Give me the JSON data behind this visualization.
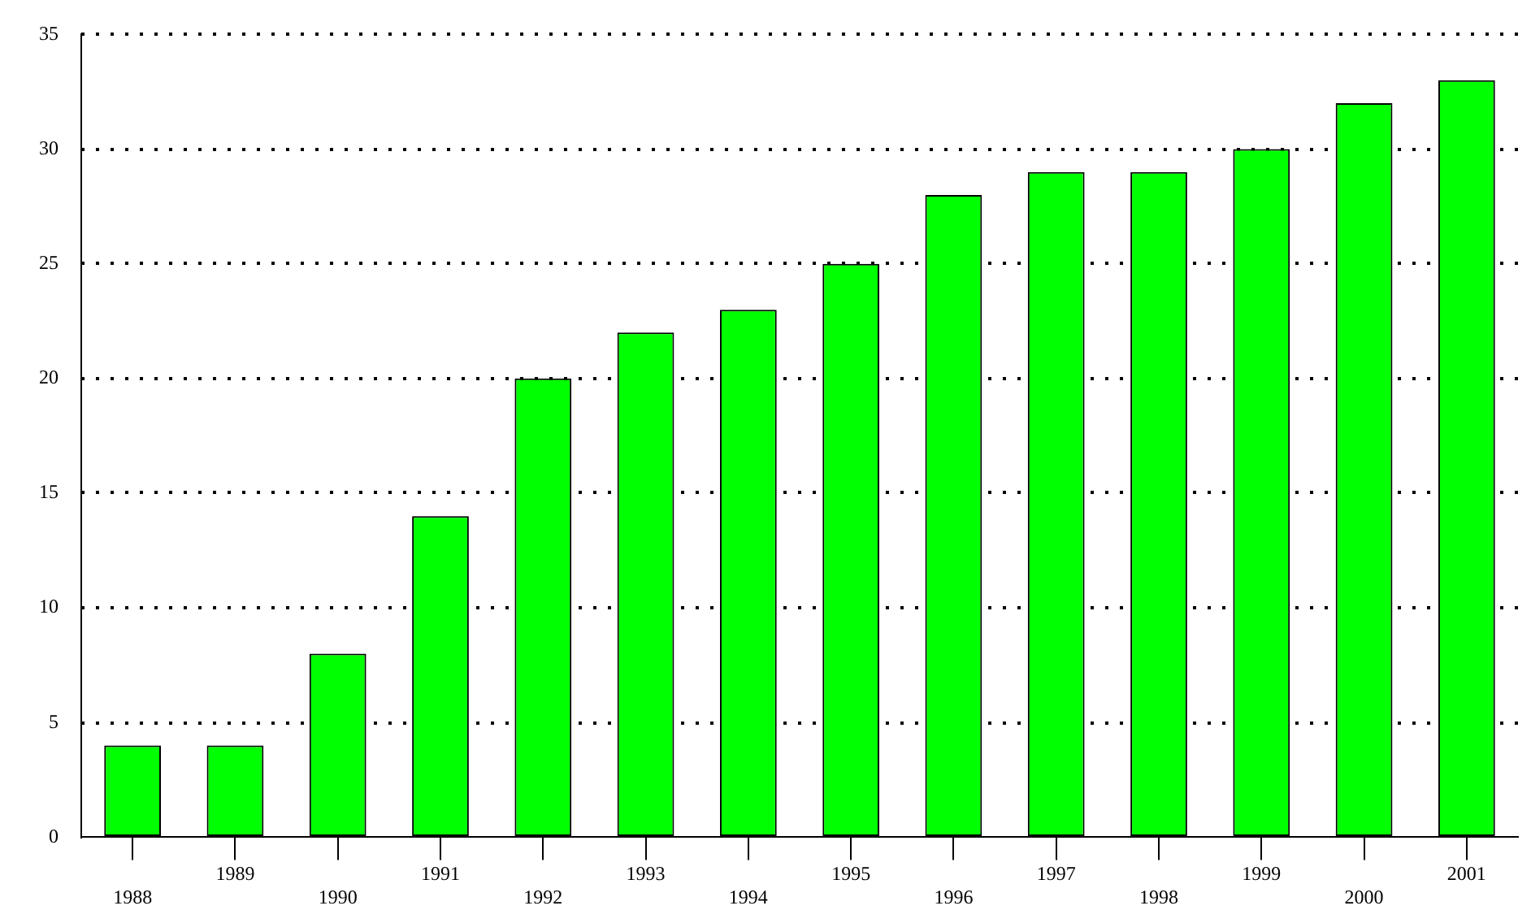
{
  "chart_data": {
    "type": "bar",
    "categories": [
      "1988",
      "1989",
      "1990",
      "1991",
      "1992",
      "1993",
      "1994",
      "1995",
      "1996",
      "1997",
      "1998",
      "1999",
      "2000",
      "2001"
    ],
    "values": [
      4,
      4,
      8,
      14,
      20,
      22,
      23,
      25,
      28,
      29,
      29,
      30,
      32,
      33
    ],
    "color": "#00ff00",
    "ylim": [
      0,
      35
    ],
    "yticks": [
      0,
      5,
      10,
      15,
      20,
      25,
      30,
      35
    ],
    "grid": "y",
    "legend": false
  }
}
